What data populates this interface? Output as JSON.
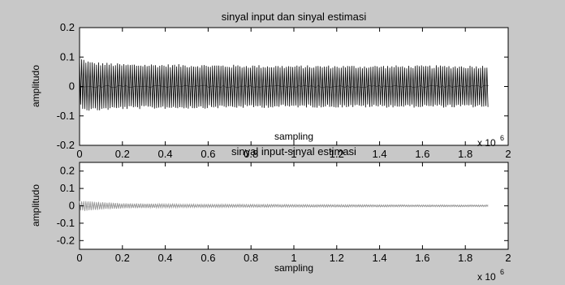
{
  "chart_data": [
    {
      "type": "line",
      "title": "sinyal input dan sinyal estimasi",
      "xlabel": "sampling",
      "ylabel": "amplitudo",
      "x_exponent_label": "x 10",
      "x_exponent": "6",
      "xlim": [
        0,
        2
      ],
      "ylim": [
        -0.2,
        0.2
      ],
      "x_ticks": [
        "0",
        "0.2",
        "0.4",
        "0.6",
        "0.8",
        "1",
        "1.2",
        "1.4",
        "1.6",
        "1.8",
        "2"
      ],
      "y_ticks": [
        "0.2",
        "0.1",
        "0",
        "-0.1",
        "-0.2"
      ],
      "grid": false,
      "series": [
        {
          "color": "#000000",
          "x_range": [
            0,
            1.91
          ],
          "envelope_x": [
            0,
            0.02,
            0.05,
            0.2,
            0.6,
            1.0,
            1.4,
            1.91
          ],
          "envelope_upper": [
            0.1,
            0.095,
            0.085,
            0.078,
            0.075,
            0.072,
            0.072,
            0.072
          ],
          "envelope_lower": [
            -0.065,
            -0.08,
            -0.085,
            -0.078,
            -0.075,
            -0.072,
            -0.072,
            -0.072
          ]
        }
      ]
    },
    {
      "type": "line",
      "title": "sinyal input-sinyal estimasi",
      "xlabel": "sampling",
      "ylabel": "amplitudo",
      "x_exponent_label": "x 10",
      "x_exponent": "6",
      "xlim": [
        0,
        2
      ],
      "ylim": [
        -0.25,
        0.25
      ],
      "x_ticks": [
        "0",
        "0.2",
        "0.4",
        "0.6",
        "0.8",
        "1",
        "1.2",
        "1.4",
        "1.6",
        "1.8",
        "2"
      ],
      "y_ticks": [
        "0.2",
        "0.1",
        "0",
        "-0.1",
        "-0.2"
      ],
      "grid": false,
      "series": [
        {
          "color": "#909090",
          "x_range": [
            0,
            1.91
          ],
          "envelope_x": [
            0,
            0.03,
            0.1,
            0.2,
            0.5,
            1.0,
            1.5,
            1.91
          ],
          "envelope_upper": [
            0.03,
            0.03,
            0.022,
            0.015,
            0.01,
            0.008,
            0.006,
            0.005
          ],
          "envelope_lower": [
            -0.03,
            -0.03,
            -0.022,
            -0.015,
            -0.01,
            -0.008,
            -0.006,
            -0.005
          ]
        }
      ]
    }
  ]
}
